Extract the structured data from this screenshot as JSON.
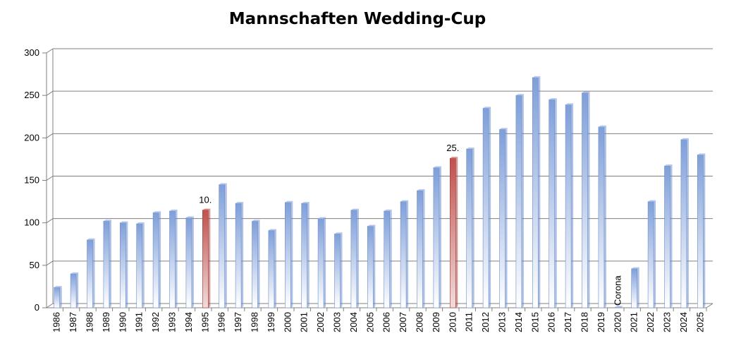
{
  "chart_data": {
    "type": "bar",
    "title": "Mannschaften Wedding-Cup",
    "xlabel": "",
    "ylabel": "",
    "ylim": [
      0,
      300
    ],
    "yticks": [
      0,
      50,
      100,
      150,
      200,
      250,
      300
    ],
    "grid": true,
    "legend": "none",
    "categories": [
      "1986",
      "1987",
      "1988",
      "1989",
      "1990",
      "1991",
      "1992",
      "1993",
      "1994",
      "1995",
      "1996",
      "1997",
      "1998",
      "1999",
      "2000",
      "2001",
      "2002",
      "2003",
      "2004",
      "2005",
      "2006",
      "2007",
      "2008",
      "2009",
      "2010",
      "2011",
      "2012",
      "2013",
      "2014",
      "2015",
      "2016",
      "2017",
      "2018",
      "2019",
      "2020",
      "2021",
      "2022",
      "2023",
      "2024",
      "2025"
    ],
    "values": [
      24,
      40,
      80,
      102,
      100,
      99,
      112,
      114,
      106,
      115,
      145,
      123,
      102,
      91,
      124,
      123,
      105,
      87,
      115,
      96,
      114,
      125,
      138,
      165,
      176,
      187,
      235,
      210,
      250,
      271,
      245,
      239,
      253,
      213,
      0,
      46,
      125,
      167,
      198,
      180
    ],
    "highlighted": [
      "1995",
      "2010"
    ],
    "annotations": [
      {
        "category": "1995",
        "text": "10."
      },
      {
        "category": "2010",
        "text": "25."
      },
      {
        "category": "2020",
        "text": "Corona"
      }
    ],
    "colors": {
      "bar_top": "#7f9fd9",
      "bar_bottom": "#ffffff",
      "highlight_top": "#c0504d",
      "highlight_bottom": "#f2dcdb",
      "grid": "#808080"
    }
  }
}
